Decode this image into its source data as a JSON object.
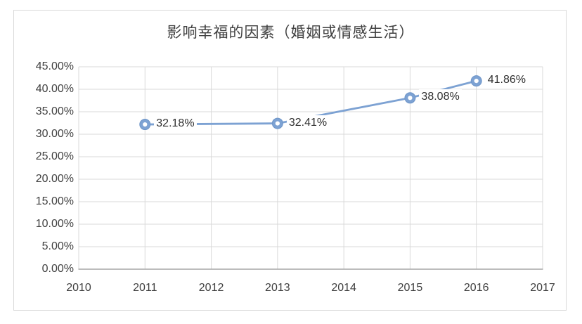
{
  "chart": {
    "title": "影响幸福的因素（婚姻或情感生活）"
  },
  "chart_data": {
    "type": "line",
    "title": "影响幸福的因素（婚姻或情感生活）",
    "x": [
      2011,
      2013,
      2015,
      2016
    ],
    "values": [
      32.18,
      32.41,
      38.08,
      41.86
    ],
    "data_labels": [
      "32.18%",
      "32.41%",
      "38.08%",
      "41.86%"
    ],
    "data_label_position": "right",
    "x_axis": {
      "min": 2010,
      "max": 2017,
      "ticks": [
        2010,
        2011,
        2012,
        2013,
        2014,
        2015,
        2016,
        2017
      ],
      "tick_labels": [
        "2010",
        "2011",
        "2012",
        "2013",
        "2014",
        "2015",
        "2016",
        "2017"
      ]
    },
    "y_axis": {
      "min": 0,
      "max": 45,
      "step": 5,
      "tick_labels": [
        "0.00%",
        "5.00%",
        "10.00%",
        "15.00%",
        "20.00%",
        "25.00%",
        "30.00%",
        "35.00%",
        "40.00%",
        "45.00%"
      ]
    },
    "grid": true,
    "legend": "none",
    "colors": {
      "series": "#7da2d3",
      "marker_ring": "#7da2d3",
      "marker_edge": "#6e95c8",
      "marker_hole": "#ffffff",
      "grid": "#d9d9d9",
      "axis_line": "#a6a6a6",
      "axis_text": "#3f3f3f",
      "title_text": "#404040",
      "label_text": "#303030",
      "frame_border": "#d9d9d9"
    }
  }
}
